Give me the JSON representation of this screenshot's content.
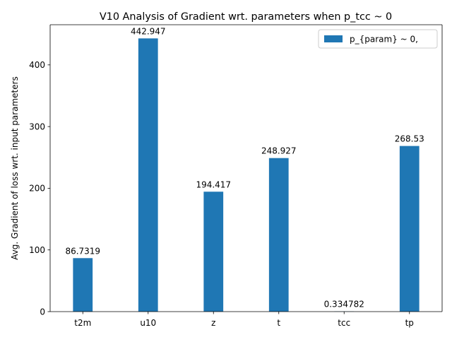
{
  "chart_data": {
    "type": "bar",
    "title": "V10 Analysis of Gradient wrt. parameters when p_tcc ~ 0",
    "xlabel": "",
    "ylabel": "Avg. Gradient of loss wrt. input parameters",
    "categories": [
      "t2m",
      "u10",
      "z",
      "t",
      "tcc",
      "tp"
    ],
    "series": [
      {
        "name": "p_{param} ~ 0,",
        "values": [
          86.7319,
          442.947,
          194.417,
          248.927,
          0.334782,
          268.53
        ],
        "labels": [
          "86.7319",
          "442.947",
          "194.417",
          "248.927",
          "0.334782",
          "268.53"
        ],
        "color": "#1f77b4"
      }
    ],
    "ylim": [
      0,
      465.1
    ],
    "yticks": [
      0,
      100,
      200,
      300,
      400
    ],
    "ytick_labels": [
      "0",
      "100",
      "200",
      "300",
      "400"
    ],
    "grid": false,
    "legend_position": "upper right"
  }
}
